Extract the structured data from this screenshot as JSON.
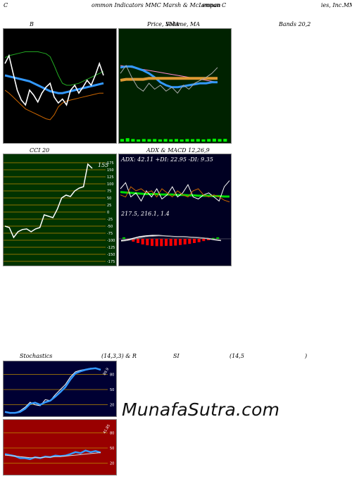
{
  "header": {
    "left": "C",
    "center": "ommon Indicators MMC Marsh & McLennan  C",
    "mid_right": "ompan",
    "right": "ies, Inc.MM"
  },
  "titles": {
    "bollinger": "B",
    "price_sma": "Price,  Volume, MA",
    "price_sma_overlap": "SMA",
    "bands": "Bands 20,2",
    "cci": "CCI 20",
    "adx_macd": "ADX  & MACD 12,26,9",
    "stoch_left": "Stochastics",
    "stoch_params": "(14,3,3) & R",
    "rsi": "SI",
    "rsi_params": "(14,5",
    "rsi_close": ")"
  },
  "adx_label": "ADX: 42.11  +DI: 22.95 -DI: 9.35",
  "macd_label": "217.5,  216.1,  1.4",
  "cci_value_label": "155",
  "stoch_value_label": "89.9",
  "rsi_value_label": "41.85",
  "watermark": "MunafaSutra.com",
  "colors": {
    "panel_bg": "#000000",
    "price_bg": "#002200",
    "cci_bg": "#003300",
    "adx_bg": "#000022",
    "stoch_bg": "#000033",
    "rsi_bg": "#990000",
    "grid_gold": "#bb8800",
    "blue": "#3399ff",
    "green": "#00dd00",
    "orange": "#cc6600",
    "white": "#ffffff"
  },
  "chart_data": [
    {
      "type": "line",
      "name": "bollinger_bands",
      "series": [
        {
          "role": "upper",
          "color": "#22aa22",
          "values": [
            0.78,
            0.8,
            0.81,
            0.82,
            0.83,
            0.84,
            0.84,
            0.84,
            0.84,
            0.83,
            0.82,
            0.79,
            0.7,
            0.6,
            0.52,
            0.5,
            0.5,
            0.51,
            0.52,
            0.54,
            0.56,
            0.58,
            0.6,
            0.62,
            0.64
          ]
        },
        {
          "role": "middle",
          "color": "#3399ff",
          "values": [
            0.6,
            0.59,
            0.58,
            0.57,
            0.56,
            0.55,
            0.54,
            0.52,
            0.5,
            0.48,
            0.46,
            0.44,
            0.43,
            0.42,
            0.42,
            0.43,
            0.44,
            0.45,
            0.46,
            0.47,
            0.48,
            0.49,
            0.5,
            0.51,
            0.52
          ]
        },
        {
          "role": "lower",
          "color": "#cc6600",
          "values": [
            0.45,
            0.42,
            0.38,
            0.34,
            0.3,
            0.26,
            0.24,
            0.22,
            0.2,
            0.18,
            0.16,
            0.15,
            0.2,
            0.28,
            0.32,
            0.34,
            0.35,
            0.36,
            0.37,
            0.38,
            0.39,
            0.4,
            0.41,
            0.42,
            0.42
          ]
        },
        {
          "role": "price",
          "color": "#ffffff",
          "values": [
            0.72,
            0.8,
            0.62,
            0.45,
            0.35,
            0.3,
            0.45,
            0.4,
            0.33,
            0.42,
            0.48,
            0.52,
            0.38,
            0.32,
            0.36,
            0.3,
            0.45,
            0.5,
            0.42,
            0.48,
            0.55,
            0.5,
            0.6,
            0.72,
            0.6
          ]
        }
      ]
    },
    {
      "type": "line",
      "name": "price_volume_ma",
      "series": [
        {
          "role": "pink_ma",
          "color": "#ff88cc",
          "values": [
            0.7,
            0.69,
            0.68,
            0.67,
            0.66,
            0.65,
            0.64,
            0.63,
            0.62,
            0.61,
            0.6,
            0.59,
            0.58,
            0.57,
            0.56,
            0.55,
            0.54,
            0.53
          ]
        },
        {
          "role": "blue_ma",
          "color": "#3399ff",
          "values": [
            0.68,
            0.69,
            0.69,
            0.67,
            0.65,
            0.62,
            0.58,
            0.53,
            0.5,
            0.48,
            0.48,
            0.49,
            0.5,
            0.51,
            0.52,
            0.52,
            0.53,
            0.53
          ]
        },
        {
          "role": "orange_ma",
          "color": "#dd9933",
          "values": [
            0.55,
            0.56,
            0.56,
            0.56,
            0.56,
            0.57,
            0.57,
            0.57,
            0.57,
            0.57,
            0.57,
            0.57,
            0.57,
            0.57,
            0.57,
            0.57,
            0.57,
            0.57
          ]
        },
        {
          "role": "price",
          "color": "#aaaaaa",
          "values": [
            0.62,
            0.7,
            0.58,
            0.48,
            0.44,
            0.52,
            0.46,
            0.5,
            0.44,
            0.48,
            0.42,
            0.5,
            0.46,
            0.52,
            0.55,
            0.58,
            0.62,
            0.68
          ]
        }
      ],
      "volume": [
        0.3,
        0.4,
        0.3,
        0.25,
        0.3,
        0.28,
        0.3,
        0.26,
        0.3,
        0.27,
        0.3,
        0.25,
        0.3,
        0.28,
        0.3,
        0.26,
        0.3,
        0.34,
        0.3,
        0.32
      ]
    },
    {
      "type": "line",
      "name": "cci",
      "y_ticks": [
        175,
        150,
        125,
        100,
        75,
        50,
        25,
        0,
        -25,
        -50,
        -75,
        -100,
        -125,
        -150,
        -175
      ],
      "ylim": [
        -175,
        175
      ],
      "values": [
        -50,
        -55,
        -90,
        -70,
        -62,
        -60,
        -70,
        -60,
        -55,
        -10,
        -15,
        -20,
        10,
        50,
        60,
        55,
        75,
        85,
        90,
        170,
        155
      ]
    },
    {
      "type": "line",
      "name": "adx",
      "series": [
        {
          "role": "adx",
          "color": "#00dd00",
          "values": [
            0.42,
            0.41,
            0.4,
            0.39,
            0.38,
            0.37,
            0.37,
            0.37,
            0.36,
            0.36,
            0.36,
            0.35,
            0.35,
            0.34,
            0.34,
            0.33,
            0.33,
            0.33,
            0.32,
            0.32,
            0.31,
            0.31
          ]
        },
        {
          "role": "plus_di",
          "color": "#ffffff",
          "values": [
            0.5,
            0.65,
            0.3,
            0.4,
            0.2,
            0.45,
            0.3,
            0.5,
            0.25,
            0.35,
            0.55,
            0.3,
            0.4,
            0.6,
            0.3,
            0.25,
            0.35,
            0.4,
            0.3,
            0.2,
            0.55,
            0.7
          ]
        },
        {
          "role": "minus_di",
          "color": "#cc6600",
          "values": [
            0.35,
            0.3,
            0.55,
            0.45,
            0.5,
            0.4,
            0.45,
            0.3,
            0.5,
            0.4,
            0.3,
            0.45,
            0.35,
            0.3,
            0.45,
            0.5,
            0.35,
            0.3,
            0.35,
            0.3,
            0.22,
            0.18
          ]
        }
      ]
    },
    {
      "type": "bar",
      "name": "macd",
      "macd_line": [
        0.5,
        0.52,
        0.56,
        0.6,
        0.62,
        0.63,
        0.63,
        0.62,
        0.61,
        0.6,
        0.6,
        0.59,
        0.58,
        0.57,
        0.55,
        0.52,
        0.5
      ],
      "signal_line": [
        0.48,
        0.5,
        0.53,
        0.57,
        0.6,
        0.61,
        0.62,
        0.62,
        0.61,
        0.6,
        0.6,
        0.59,
        0.58,
        0.57,
        0.56,
        0.53,
        0.51
      ],
      "histogram": [
        0.05,
        -0.05,
        -0.1,
        -0.15,
        -0.2,
        -0.23,
        -0.25,
        -0.26,
        -0.26,
        -0.25,
        -0.25,
        -0.24,
        -0.22,
        -0.2,
        -0.18,
        -0.15,
        -0.12,
        -0.08,
        -0.05,
        0.03,
        0.05
      ]
    },
    {
      "type": "line",
      "name": "stochastics",
      "y_ticks": [
        80,
        50,
        20
      ],
      "ylim": [
        0,
        100
      ],
      "series": [
        {
          "role": "k",
          "color": "#ffffff",
          "values": [
            5,
            3,
            4,
            8,
            15,
            25,
            20,
            18,
            30,
            28,
            40,
            50,
            60,
            75,
            85,
            88,
            90,
            92,
            91,
            90
          ]
        },
        {
          "role": "d",
          "color": "#3399ff",
          "values": [
            6,
            4,
            4,
            6,
            12,
            22,
            24,
            20,
            25,
            28,
            36,
            45,
            55,
            70,
            82,
            86,
            89,
            91,
            92,
            89
          ]
        }
      ]
    },
    {
      "type": "line",
      "name": "rsi",
      "y_ticks": [
        80,
        50,
        20
      ],
      "ylim": [
        0,
        100
      ],
      "series": [
        {
          "role": "rsi",
          "color": "#3399ff",
          "values": [
            38,
            36,
            34,
            30,
            30,
            28,
            32,
            30,
            33,
            32,
            35,
            34,
            35,
            38,
            42,
            40,
            45,
            42,
            44,
            41
          ]
        },
        {
          "role": "ma",
          "color": "#dddddd",
          "values": [
            36,
            35,
            34,
            33,
            32,
            31,
            31,
            31,
            32,
            32,
            33,
            33,
            34,
            35,
            36,
            37,
            38,
            39,
            40,
            41
          ]
        }
      ]
    }
  ]
}
